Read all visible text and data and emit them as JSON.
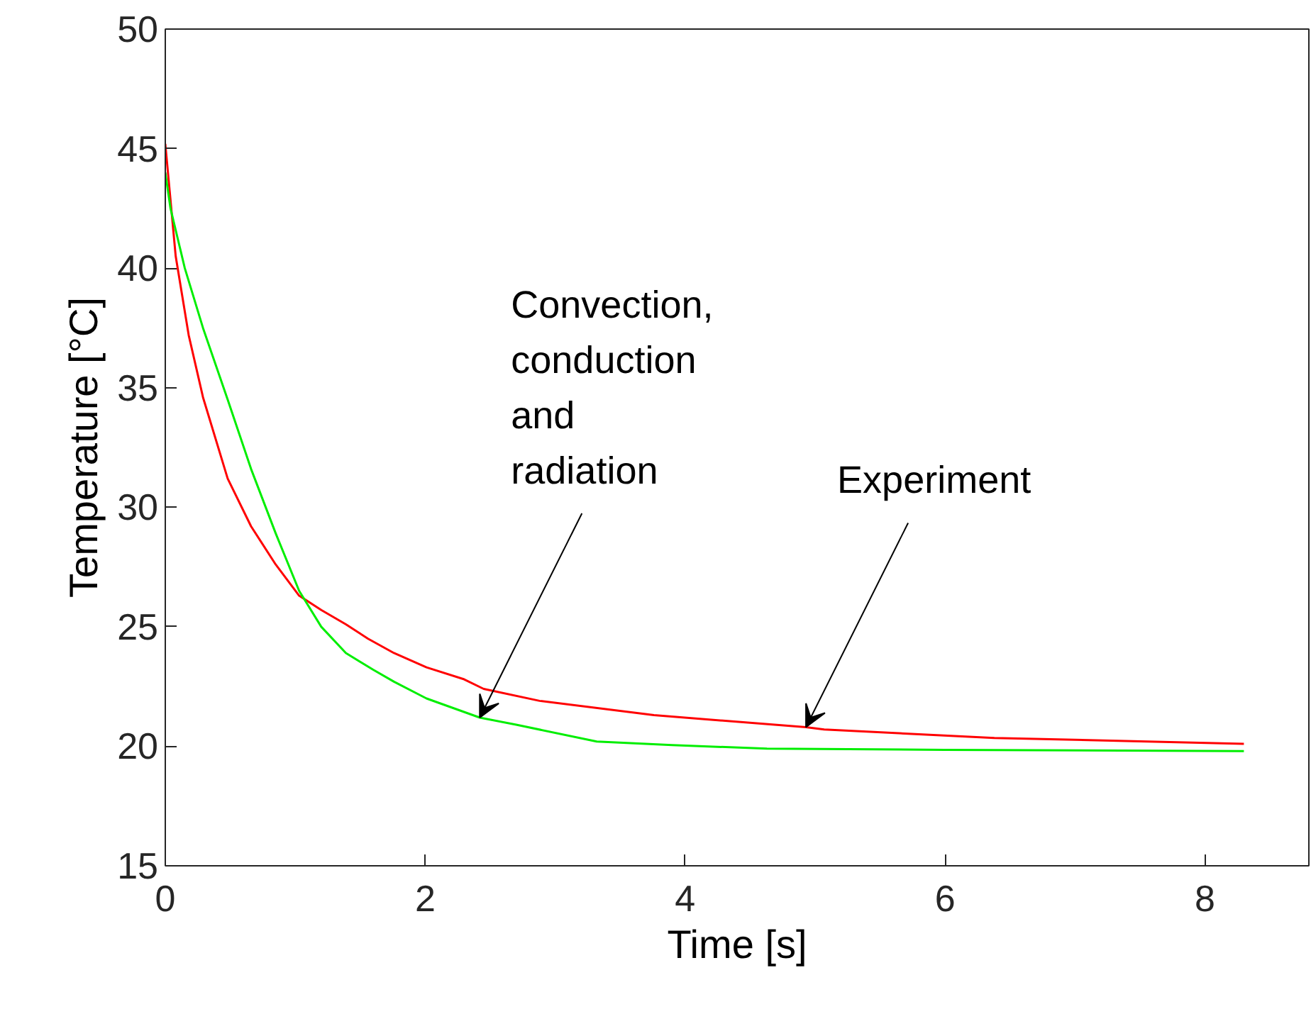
{
  "chart_data": {
    "type": "line",
    "xlabel": "Time [s]",
    "ylabel": "Temperature [°C]",
    "xlim": [
      0,
      8.8
    ],
    "ylim": [
      15,
      50
    ],
    "xticks": [
      0,
      2,
      4,
      6,
      8
    ],
    "yticks": [
      15,
      20,
      25,
      30,
      35,
      40,
      45,
      50
    ],
    "grid": false,
    "series": [
      {
        "color": "#ff0000",
        "x": [
          0,
          0.08,
          0.18,
          0.29,
          0.48,
          0.66,
          0.85,
          1.03,
          1.2,
          1.39,
          1.56,
          1.76,
          2.01,
          2.3,
          2.45,
          2.88,
          3.76,
          4.93,
          5.07,
          6.38,
          8.3
        ],
        "values": [
          45.2,
          40.5,
          37.2,
          34.6,
          31.2,
          29.2,
          27.6,
          26.3,
          25.7,
          25.1,
          24.5,
          23.9,
          23.3,
          22.8,
          22.4,
          21.9,
          21.3,
          20.8,
          20.7,
          20.35,
          20.1
        ]
      },
      {
        "color": "#00ee00",
        "x": [
          0,
          0.04,
          0.15,
          0.29,
          0.48,
          0.66,
          0.85,
          1.03,
          1.2,
          1.39,
          1.6,
          1.76,
          2.01,
          2.42,
          2.7,
          3.32,
          3.9,
          4.63,
          6.0,
          8.3
        ],
        "values": [
          44.0,
          42.5,
          40.0,
          37.5,
          34.5,
          31.6,
          28.9,
          26.5,
          25.0,
          23.9,
          23.2,
          22.7,
          22.0,
          21.2,
          20.9,
          20.2,
          20.05,
          19.9,
          19.85,
          19.8
        ]
      }
    ],
    "annotations": [
      {
        "text": "Convection,\nconduction\nand\nradiation",
        "x": 2.42,
        "y": 21.2
      },
      {
        "text": "Experiment",
        "x": 4.93,
        "y": 20.8
      }
    ]
  }
}
